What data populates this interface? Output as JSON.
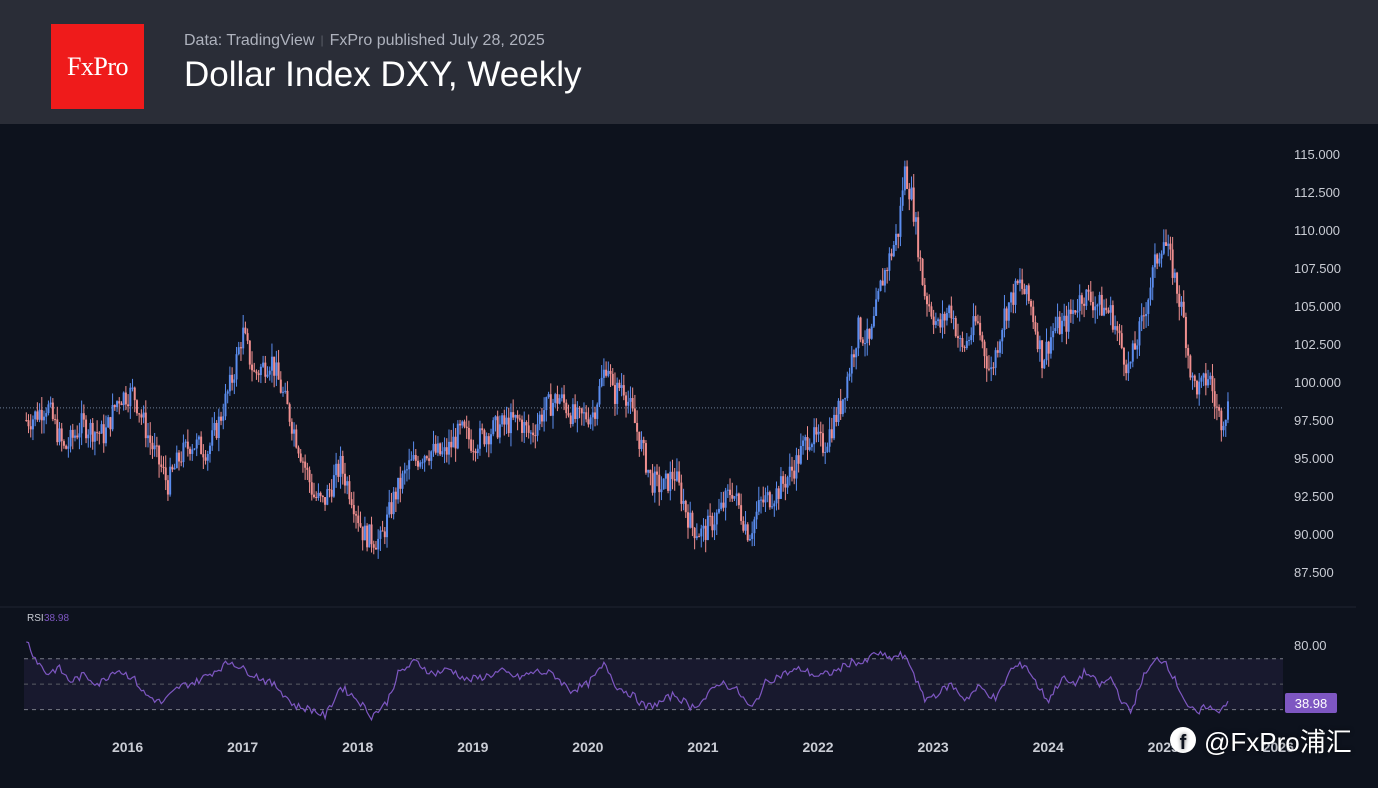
{
  "header": {
    "logo_text": "FxPro",
    "source": "Data: TradingView",
    "separator": "|",
    "publisher": "FxPro published July 28, 2025",
    "title": "Dollar Index DXY, Weekly"
  },
  "watermark": {
    "icon": "facebook-icon",
    "text": "@FxPro浦汇"
  },
  "colors": {
    "background": "#0d121d",
    "header": "#2a2d37",
    "logo": "#ef1b1b",
    "up_candle": "#5b8def",
    "down_candle": "#f08f8f",
    "rsi_line": "#7e57c2",
    "rsi_badge": "#7e57c2"
  },
  "chart_data": {
    "type": "line",
    "subtype": "candlestick",
    "title": "Dollar Index DXY, Weekly",
    "x_labels": [
      "2016",
      "2017",
      "2018",
      "2019",
      "2020",
      "2021",
      "2022",
      "2023",
      "2024",
      "2025",
      "2026"
    ],
    "y_ticks": [
      "115.000",
      "112.500",
      "110.000",
      "107.500",
      "105.000",
      "102.500",
      "100.000",
      "97.500",
      "95.000",
      "92.500",
      "90.000",
      "87.500"
    ],
    "ylim": [
      86.0,
      117.0
    ],
    "current_price_line": 98.3,
    "series": [
      {
        "values": [
          {
            "x": 2015.15,
            "y": 97.5
          },
          {
            "x": 2015.3,
            "y": 98.5
          },
          {
            "x": 2015.45,
            "y": 95.5
          },
          {
            "x": 2015.6,
            "y": 97.2
          },
          {
            "x": 2015.8,
            "y": 96.5
          },
          {
            "x": 2015.92,
            "y": 99.0
          },
          {
            "x": 2016.05,
            "y": 99.3
          },
          {
            "x": 2016.2,
            "y": 96.0
          },
          {
            "x": 2016.35,
            "y": 93.3
          },
          {
            "x": 2016.45,
            "y": 95.0
          },
          {
            "x": 2016.55,
            "y": 96.0
          },
          {
            "x": 2016.7,
            "y": 95.5
          },
          {
            "x": 2016.8,
            "y": 97.5
          },
          {
            "x": 2016.92,
            "y": 100.5
          },
          {
            "x": 2017.0,
            "y": 103.3
          },
          {
            "x": 2017.1,
            "y": 100.5
          },
          {
            "x": 2017.25,
            "y": 101.5
          },
          {
            "x": 2017.4,
            "y": 98.0
          },
          {
            "x": 2017.5,
            "y": 95.5
          },
          {
            "x": 2017.62,
            "y": 92.5
          },
          {
            "x": 2017.7,
            "y": 92.0
          },
          {
            "x": 2017.85,
            "y": 94.5
          },
          {
            "x": 2017.95,
            "y": 92.5
          },
          {
            "x": 2018.05,
            "y": 90.0
          },
          {
            "x": 2018.2,
            "y": 89.5
          },
          {
            "x": 2018.32,
            "y": 92.5
          },
          {
            "x": 2018.45,
            "y": 94.5
          },
          {
            "x": 2018.6,
            "y": 95.5
          },
          {
            "x": 2018.75,
            "y": 95.2
          },
          {
            "x": 2018.9,
            "y": 96.8
          },
          {
            "x": 2019.0,
            "y": 96.0
          },
          {
            "x": 2019.2,
            "y": 97.0
          },
          {
            "x": 2019.4,
            "y": 97.5
          },
          {
            "x": 2019.5,
            "y": 96.5
          },
          {
            "x": 2019.62,
            "y": 98.2
          },
          {
            "x": 2019.75,
            "y": 99.0
          },
          {
            "x": 2019.9,
            "y": 97.5
          },
          {
            "x": 2020.05,
            "y": 98.0
          },
          {
            "x": 2020.17,
            "y": 101.5
          },
          {
            "x": 2020.22,
            "y": 99.0
          },
          {
            "x": 2020.3,
            "y": 100.0
          },
          {
            "x": 2020.42,
            "y": 97.0
          },
          {
            "x": 2020.55,
            "y": 93.5
          },
          {
            "x": 2020.65,
            "y": 93.0
          },
          {
            "x": 2020.75,
            "y": 94.0
          },
          {
            "x": 2020.9,
            "y": 90.5
          },
          {
            "x": 2021.0,
            "y": 90.0
          },
          {
            "x": 2021.15,
            "y": 91.5
          },
          {
            "x": 2021.25,
            "y": 93.0
          },
          {
            "x": 2021.4,
            "y": 90.0
          },
          {
            "x": 2021.5,
            "y": 92.0
          },
          {
            "x": 2021.65,
            "y": 92.8
          },
          {
            "x": 2021.8,
            "y": 94.5
          },
          {
            "x": 2021.92,
            "y": 96.5
          },
          {
            "x": 2022.05,
            "y": 95.8
          },
          {
            "x": 2022.2,
            "y": 98.5
          },
          {
            "x": 2022.35,
            "y": 103.5
          },
          {
            "x": 2022.45,
            "y": 102.5
          },
          {
            "x": 2022.55,
            "y": 106.5
          },
          {
            "x": 2022.7,
            "y": 110.0
          },
          {
            "x": 2022.75,
            "y": 114.0
          },
          {
            "x": 2022.82,
            "y": 112.0
          },
          {
            "x": 2022.92,
            "y": 106.0
          },
          {
            "x": 2023.05,
            "y": 103.5
          },
          {
            "x": 2023.15,
            "y": 105.0
          },
          {
            "x": 2023.25,
            "y": 102.0
          },
          {
            "x": 2023.38,
            "y": 104.0
          },
          {
            "x": 2023.5,
            "y": 100.5
          },
          {
            "x": 2023.62,
            "y": 104.5
          },
          {
            "x": 2023.75,
            "y": 106.5
          },
          {
            "x": 2023.85,
            "y": 105.0
          },
          {
            "x": 2023.95,
            "y": 101.5
          },
          {
            "x": 2024.05,
            "y": 103.5
          },
          {
            "x": 2024.15,
            "y": 103.8
          },
          {
            "x": 2024.3,
            "y": 105.8
          },
          {
            "x": 2024.45,
            "y": 105.0
          },
          {
            "x": 2024.55,
            "y": 104.5
          },
          {
            "x": 2024.65,
            "y": 102.0
          },
          {
            "x": 2024.7,
            "y": 100.8
          },
          {
            "x": 2024.82,
            "y": 104.0
          },
          {
            "x": 2024.92,
            "y": 107.5
          },
          {
            "x": 2025.0,
            "y": 109.5
          },
          {
            "x": 2025.08,
            "y": 107.5
          },
          {
            "x": 2025.18,
            "y": 104.0
          },
          {
            "x": 2025.25,
            "y": 100.0
          },
          {
            "x": 2025.32,
            "y": 99.5
          },
          {
            "x": 2025.4,
            "y": 100.5
          },
          {
            "x": 2025.45,
            "y": 98.5
          },
          {
            "x": 2025.5,
            "y": 97.5
          },
          {
            "x": 2025.57,
            "y": 98.5
          }
        ]
      }
    ]
  },
  "rsi": {
    "label": "RSI",
    "value_label": "38.98",
    "y_tick": "80.00",
    "badge": "38.98",
    "overbought": 70,
    "oversold": 30,
    "values": [
      {
        "x": 2015.12,
        "y": 85
      },
      {
        "x": 2015.2,
        "y": 70
      },
      {
        "x": 2015.3,
        "y": 58
      },
      {
        "x": 2015.4,
        "y": 63
      },
      {
        "x": 2015.5,
        "y": 52
      },
      {
        "x": 2015.62,
        "y": 57
      },
      {
        "x": 2015.75,
        "y": 50
      },
      {
        "x": 2015.9,
        "y": 62
      },
      {
        "x": 2016.05,
        "y": 55
      },
      {
        "x": 2016.15,
        "y": 42
      },
      {
        "x": 2016.3,
        "y": 35
      },
      {
        "x": 2016.45,
        "y": 48
      },
      {
        "x": 2016.6,
        "y": 52
      },
      {
        "x": 2016.75,
        "y": 60
      },
      {
        "x": 2016.9,
        "y": 68
      },
      {
        "x": 2017.0,
        "y": 62
      },
      {
        "x": 2017.15,
        "y": 55
      },
      {
        "x": 2017.3,
        "y": 48
      },
      {
        "x": 2017.45,
        "y": 33
      },
      {
        "x": 2017.6,
        "y": 30
      },
      {
        "x": 2017.72,
        "y": 25
      },
      {
        "x": 2017.85,
        "y": 48
      },
      {
        "x": 2018.0,
        "y": 38
      },
      {
        "x": 2018.12,
        "y": 25
      },
      {
        "x": 2018.25,
        "y": 35
      },
      {
        "x": 2018.35,
        "y": 58
      },
      {
        "x": 2018.5,
        "y": 68
      },
      {
        "x": 2018.65,
        "y": 58
      },
      {
        "x": 2018.8,
        "y": 62
      },
      {
        "x": 2018.95,
        "y": 53
      },
      {
        "x": 2019.1,
        "y": 56
      },
      {
        "x": 2019.25,
        "y": 60
      },
      {
        "x": 2019.4,
        "y": 55
      },
      {
        "x": 2019.55,
        "y": 60
      },
      {
        "x": 2019.7,
        "y": 58
      },
      {
        "x": 2019.85,
        "y": 45
      },
      {
        "x": 2020.0,
        "y": 50
      },
      {
        "x": 2020.15,
        "y": 66
      },
      {
        "x": 2020.25,
        "y": 48
      },
      {
        "x": 2020.38,
        "y": 42
      },
      {
        "x": 2020.5,
        "y": 32
      },
      {
        "x": 2020.62,
        "y": 35
      },
      {
        "x": 2020.75,
        "y": 42
      },
      {
        "x": 2020.9,
        "y": 32
      },
      {
        "x": 2021.0,
        "y": 37
      },
      {
        "x": 2021.15,
        "y": 52
      },
      {
        "x": 2021.3,
        "y": 45
      },
      {
        "x": 2021.42,
        "y": 30
      },
      {
        "x": 2021.55,
        "y": 52
      },
      {
        "x": 2021.7,
        "y": 58
      },
      {
        "x": 2021.85,
        "y": 62
      },
      {
        "x": 2022.0,
        "y": 56
      },
      {
        "x": 2022.15,
        "y": 60
      },
      {
        "x": 2022.3,
        "y": 68
      },
      {
        "x": 2022.4,
        "y": 66
      },
      {
        "x": 2022.5,
        "y": 75
      },
      {
        "x": 2022.62,
        "y": 70
      },
      {
        "x": 2022.72,
        "y": 73
      },
      {
        "x": 2022.8,
        "y": 66
      },
      {
        "x": 2022.92,
        "y": 38
      },
      {
        "x": 2023.05,
        "y": 43
      },
      {
        "x": 2023.15,
        "y": 50
      },
      {
        "x": 2023.28,
        "y": 38
      },
      {
        "x": 2023.4,
        "y": 48
      },
      {
        "x": 2023.55,
        "y": 38
      },
      {
        "x": 2023.68,
        "y": 62
      },
      {
        "x": 2023.8,
        "y": 66
      },
      {
        "x": 2023.9,
        "y": 50
      },
      {
        "x": 2024.0,
        "y": 37
      },
      {
        "x": 2024.12,
        "y": 55
      },
      {
        "x": 2024.22,
        "y": 49
      },
      {
        "x": 2024.32,
        "y": 60
      },
      {
        "x": 2024.45,
        "y": 49
      },
      {
        "x": 2024.55,
        "y": 55
      },
      {
        "x": 2024.65,
        "y": 35
      },
      {
        "x": 2024.72,
        "y": 28
      },
      {
        "x": 2024.82,
        "y": 55
      },
      {
        "x": 2024.95,
        "y": 70
      },
      {
        "x": 2025.02,
        "y": 68
      },
      {
        "x": 2025.12,
        "y": 50
      },
      {
        "x": 2025.22,
        "y": 32
      },
      {
        "x": 2025.3,
        "y": 26
      },
      {
        "x": 2025.38,
        "y": 34
      },
      {
        "x": 2025.45,
        "y": 28
      },
      {
        "x": 2025.52,
        "y": 32
      },
      {
        "x": 2025.57,
        "y": 39
      }
    ]
  }
}
